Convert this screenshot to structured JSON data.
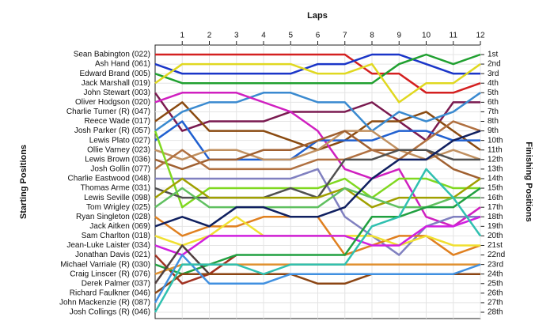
{
  "chart_data": {
    "type": "bump",
    "title": "Laps",
    "y_label": "Starting Positions",
    "y2_label": "Finishing Positions",
    "x": [
      0,
      1,
      2,
      3,
      4,
      5,
      6,
      7,
      8,
      9,
      10,
      11,
      12
    ],
    "xlim": [
      0,
      12
    ],
    "xticks": [
      1,
      2,
      3,
      4,
      5,
      6,
      7,
      8,
      9,
      10,
      11,
      12
    ],
    "ylim": [
      1,
      28
    ],
    "y2ticks": [
      {
        "value": 1,
        "label": "1st"
      },
      {
        "value": 2,
        "label": "2nd"
      },
      {
        "value": 3,
        "label": "3rd"
      },
      {
        "value": 4,
        "label": "4th"
      },
      {
        "value": 5,
        "label": "5th"
      },
      {
        "value": 6,
        "label": "6th"
      },
      {
        "value": 7,
        "label": "7th"
      },
      {
        "value": 8,
        "label": "8th"
      },
      {
        "value": 9,
        "label": "9th"
      },
      {
        "value": 10,
        "label": "10th"
      },
      {
        "value": 11,
        "label": "11th"
      },
      {
        "value": 12,
        "label": "12th"
      },
      {
        "value": 13,
        "label": "13th"
      },
      {
        "value": 14,
        "label": "14th"
      },
      {
        "value": 15,
        "label": "15th"
      },
      {
        "value": 16,
        "label": "16th"
      },
      {
        "value": 17,
        "label": "17th"
      },
      {
        "value": 18,
        "label": "18th"
      },
      {
        "value": 19,
        "label": "19th"
      },
      {
        "value": 20,
        "label": "20th"
      },
      {
        "value": 21,
        "label": "21st"
      },
      {
        "value": 22,
        "label": "22nd"
      },
      {
        "value": 23,
        "label": "23rd"
      },
      {
        "value": 24,
        "label": "24th"
      },
      {
        "value": 25,
        "label": "25th"
      },
      {
        "value": 26,
        "label": "26th"
      },
      {
        "value": 27,
        "label": "27th"
      },
      {
        "value": 28,
        "label": "28th"
      }
    ],
    "grid": true,
    "series": [
      {
        "name": "Sean Babington (022)",
        "color": "#d42020",
        "values": [
          1,
          1,
          1,
          1,
          1,
          1,
          1,
          1,
          3,
          3,
          5,
          5,
          4
        ]
      },
      {
        "name": "Ash Hand (061)",
        "color": "#1a35c8",
        "values": [
          2,
          3,
          3,
          3,
          3,
          3,
          2,
          2,
          1,
          1,
          2,
          3,
          3
        ]
      },
      {
        "name": "Edward Brand (005)",
        "color": "#20a030",
        "values": [
          3,
          4,
          4,
          4,
          4,
          4,
          4,
          4,
          4,
          2,
          1,
          2,
          1
        ]
      },
      {
        "name": "Jack Marshall (019)",
        "color": "#e0d820",
        "values": [
          4,
          2,
          2,
          2,
          2,
          2,
          3,
          3,
          2,
          6,
          4,
          4,
          2
        ]
      },
      {
        "name": "John Stewart (003)",
        "color": "#7a1a50",
        "values": [
          5,
          9,
          8,
          8,
          8,
          7,
          7,
          7,
          6,
          8,
          10,
          6,
          6
        ]
      },
      {
        "name": "Oliver Hodgson (020)",
        "color": "#8a4a10",
        "values": [
          8,
          6,
          9,
          9,
          9,
          10,
          11,
          10,
          8,
          8,
          7,
          9,
          11
        ]
      },
      {
        "name": "Charlie Turner (R) (047)",
        "color": "#3a8ad0",
        "values": [
          9,
          7,
          6,
          6,
          5,
          5,
          6,
          6,
          9,
          7,
          8,
          7,
          5
        ]
      },
      {
        "name": "Reece Wade (017)",
        "color": "#d020c0",
        "values": [
          6,
          5,
          5,
          5,
          6,
          7,
          9,
          13,
          14,
          13,
          18,
          19,
          17
        ]
      },
      {
        "name": "Josh Parker (R) (057)",
        "color": "#2060d0",
        "values": [
          10,
          8,
          12,
          12,
          12,
          12,
          10,
          10,
          10,
          9,
          9,
          10,
          10
        ]
      },
      {
        "name": "Lewis Plato (027)",
        "color": "#c09060",
        "values": [
          11,
          12,
          11,
          11,
          12,
          12,
          11,
          9,
          9,
          11,
          12,
          11,
          12
        ]
      },
      {
        "name": "Ollie Varney (023)",
        "color": "#a06030",
        "values": [
          12,
          13,
          12,
          12,
          11,
          11,
          10,
          9,
          11,
          11,
          11,
          13,
          14
        ]
      },
      {
        "name": "Lewis Brown (036)",
        "color": "#b07040",
        "values": [
          13,
          11,
          13,
          13,
          13,
          13,
          12,
          12,
          11,
          12,
          10,
          8,
          9
        ]
      },
      {
        "name": "Josh Gollin (077)",
        "color": "#8080c0",
        "values": [
          14,
          14,
          14,
          14,
          14,
          14,
          13,
          18,
          20,
          22,
          19,
          18,
          18
        ]
      },
      {
        "name": "Charlie Eastwood (048)",
        "color": "#80d820",
        "values": [
          9,
          17,
          15,
          15,
          15,
          15,
          15,
          14,
          16,
          14,
          14,
          15,
          15
        ]
      },
      {
        "name": "Thomas Arme (031)",
        "color": "#505050",
        "values": [
          15,
          16,
          16,
          16,
          16,
          15,
          16,
          12,
          12,
          11,
          11,
          12,
          12
        ]
      },
      {
        "name": "Lewis Seville (098)",
        "color": "#a0a000",
        "values": [
          16,
          14,
          16,
          16,
          16,
          16,
          16,
          15,
          17,
          16,
          16,
          16,
          14
        ]
      },
      {
        "name": "Tom Wrigley (025)",
        "color": "#60c060",
        "values": [
          17,
          15,
          17,
          17,
          17,
          17,
          17,
          15,
          16,
          17,
          17,
          16,
          16
        ]
      },
      {
        "name": "Ryan Singleton (028)",
        "color": "#e08020",
        "values": [
          18,
          20,
          19,
          19,
          18,
          18,
          18,
          22,
          21,
          20,
          20,
          22,
          21
        ]
      },
      {
        "name": "Jack Aitken (069)",
        "color": "#102060",
        "values": [
          19,
          18,
          19,
          17,
          17,
          18,
          18,
          17,
          14,
          12,
          12,
          10,
          9
        ]
      },
      {
        "name": "Sam Charlton (018)",
        "color": "#f0e030",
        "values": [
          20,
          21,
          20,
          18,
          20,
          20,
          20,
          20,
          20,
          21,
          20,
          21,
          21
        ]
      },
      {
        "name": "Jean-Luke Laister (034)",
        "color": "#d020e0",
        "values": [
          21,
          22,
          20,
          20,
          20,
          20,
          20,
          20,
          21,
          21,
          19,
          19,
          18
        ]
      },
      {
        "name": "Jonathan Davis (021)",
        "color": "#a03020",
        "values": [
          22,
          25,
          24,
          22,
          null,
          null,
          null,
          null,
          null,
          null,
          null,
          null,
          null
        ]
      },
      {
        "name": "Michael Varriale (R) (030)",
        "color": "#20a040",
        "values": [
          23,
          24,
          23,
          22,
          22,
          22,
          22,
          22,
          18,
          18,
          17,
          17,
          15
        ]
      },
      {
        "name": "Craig Linscer (R) (076)",
        "color": "#e09030",
        "values": [
          24,
          23,
          23,
          23,
          23,
          23,
          23,
          23,
          23,
          23,
          23,
          23,
          23
        ]
      },
      {
        "name": "Derek Palmer (037)",
        "color": "#504040",
        "values": [
          25,
          21,
          24,
          24,
          24,
          24,
          24,
          24,
          24,
          24,
          24,
          24,
          24
        ]
      },
      {
        "name": "Richard Faulkner (046)",
        "color": "#8b4513",
        "values": [
          26,
          24,
          24,
          24,
          24,
          24,
          25,
          25,
          24,
          24,
          24,
          24,
          24
        ]
      },
      {
        "name": "John Mackenzie (R) (087)",
        "color": "#4090e0",
        "values": [
          27,
          22,
          25,
          25,
          25,
          24,
          24,
          24,
          24,
          24,
          24,
          24,
          23
        ]
      },
      {
        "name": "Josh Collings (R) (046)",
        "color": "#30c0b0",
        "values": [
          28,
          23,
          23,
          23,
          24,
          23,
          23,
          23,
          19,
          18,
          13,
          16,
          20
        ]
      }
    ]
  }
}
